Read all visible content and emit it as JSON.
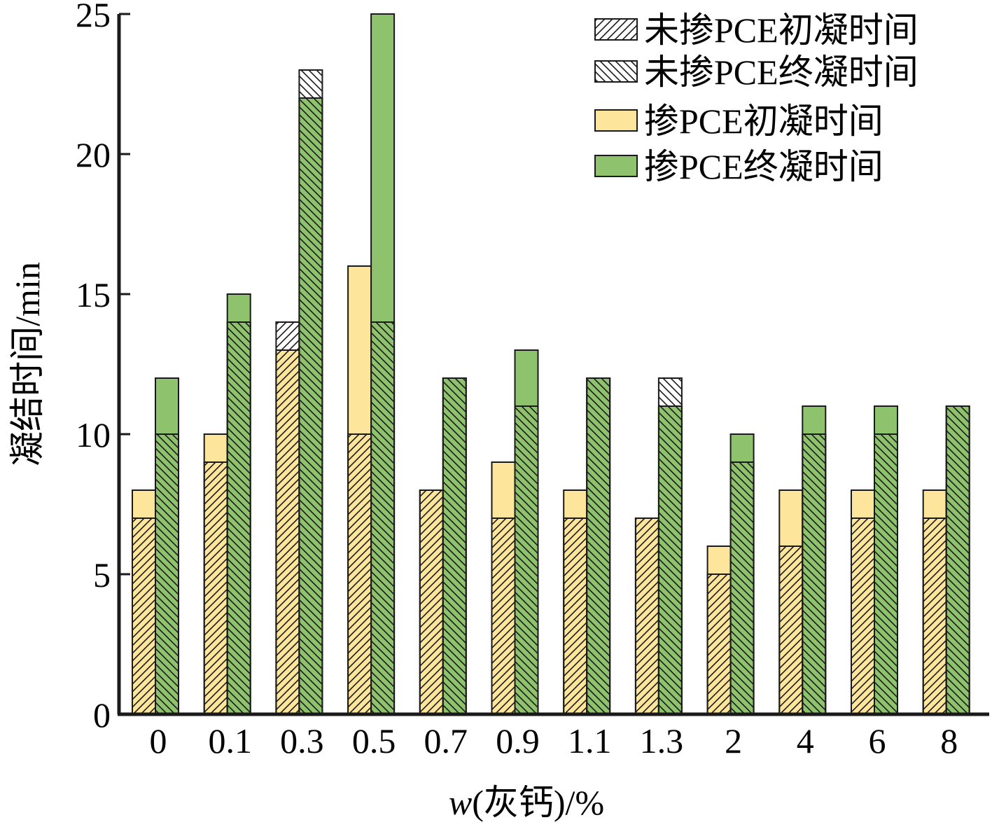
{
  "chart_data": {
    "type": "bar",
    "title": "",
    "xlabel_italic": "w",
    "xlabel_rest": "(灰钙)/%",
    "ylabel": "凝结时间/min",
    "ylim": [
      0,
      25
    ],
    "yticks": [
      "0",
      "5",
      "10",
      "15",
      "20",
      "25"
    ],
    "categories": [
      "0",
      "0.1",
      "0.3",
      "0.5",
      "0.7",
      "0.9",
      "1.1",
      "1.3",
      "2",
      "4",
      "6",
      "8"
    ],
    "legend_position": "top-right",
    "series": [
      {
        "name": "未掺PCE初凝时间",
        "values": [
          7,
          9,
          14,
          10,
          8,
          7,
          7,
          7,
          5,
          6,
          7,
          7
        ]
      },
      {
        "name": "未掺PCE终凝时间",
        "values": [
          10,
          14,
          23,
          14,
          12,
          11,
          12,
          12,
          9,
          10,
          10,
          11
        ]
      },
      {
        "name": "掺PCE初凝时间",
        "values": [
          8,
          10,
          13,
          16,
          8,
          9,
          8,
          7,
          6,
          8,
          8,
          8
        ]
      },
      {
        "name": "掺PCE终凝时间",
        "values": [
          12,
          15,
          22,
          25,
          12,
          13,
          12,
          11,
          10,
          11,
          11,
          11
        ]
      }
    ],
    "colors": {
      "pce_initial": "#fde59b",
      "pce_final": "#8fc26d",
      "outline": "#1a1a1a",
      "axis": "#1a1a1a"
    },
    "grid": false
  }
}
